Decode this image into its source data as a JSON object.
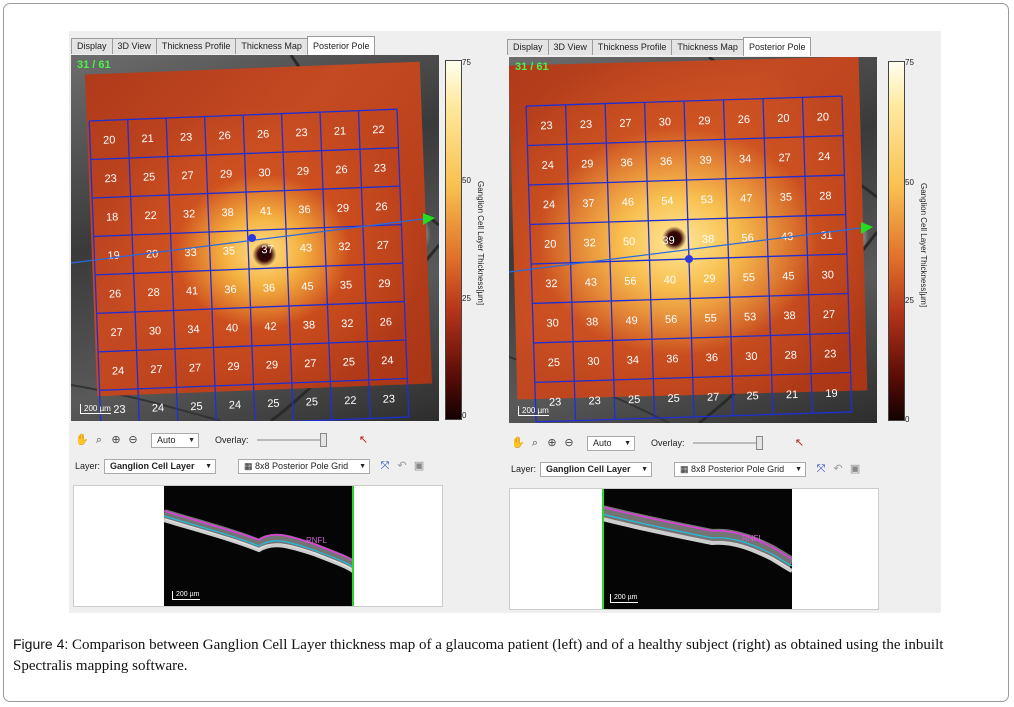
{
  "colors": {
    "grid_line": "#1f2fd4",
    "cell_text": "#ffffff",
    "counter": "#4df04d",
    "accent_arrow": "#22dd22"
  },
  "panels": [
    {
      "tabs": [
        "Display",
        "3D View",
        "Thickness Profile",
        "Thickness Map",
        "Posterior Pole"
      ],
      "active_tab": "Posterior Pole",
      "counter": "31 / 61",
      "scale": "200 µm",
      "colorbar": {
        "ticks": [
          "75",
          "50",
          "25",
          "0"
        ],
        "label": "Ganglion Cell Layer Thickness[µm]"
      },
      "grid": [
        [
          "20",
          "21",
          "23",
          "26",
          "26",
          "23",
          "21",
          "22"
        ],
        [
          "23",
          "25",
          "27",
          "29",
          "30",
          "29",
          "26",
          "23"
        ],
        [
          "18",
          "22",
          "32",
          "38",
          "41",
          "36",
          "29",
          "26"
        ],
        [
          "19",
          "20",
          "33",
          "35",
          "37",
          "43",
          "32",
          "27"
        ],
        [
          "26",
          "28",
          "41",
          "36",
          "36",
          "45",
          "35",
          "29"
        ],
        [
          "27",
          "30",
          "34",
          "40",
          "42",
          "38",
          "32",
          "26"
        ],
        [
          "24",
          "27",
          "27",
          "29",
          "29",
          "27",
          "25",
          "24"
        ],
        [
          "23",
          "24",
          "25",
          "24",
          "25",
          "25",
          "22",
          "23"
        ]
      ],
      "toolbar": {
        "zoom_select": "Auto",
        "overlay_label": "Overlay:",
        "layer_label": "Layer:",
        "layer_select": "Ganglion Cell Layer",
        "grid_select": "8x8 Posterior Pole Grid"
      },
      "bscan": {
        "scale": "200 µm",
        "rnfl_label": "RNFL"
      },
      "icons": [
        "hand-icon",
        "magnify-icon",
        "zoom-in-icon",
        "zoom-out-icon",
        "pointer-icon",
        "grid-icon",
        "fit-icon",
        "undo-icon",
        "save-icon"
      ]
    },
    {
      "tabs": [
        "Display",
        "3D View",
        "Thickness Profile",
        "Thickness Map",
        "Posterior Pole"
      ],
      "active_tab": "Posterior Pole",
      "counter": "31 / 61",
      "scale": "200 µm",
      "colorbar": {
        "ticks": [
          "75",
          "50",
          "25",
          "0"
        ],
        "label": "Ganglion Cell Layer Thickness[µm]"
      },
      "grid": [
        [
          "23",
          "23",
          "27",
          "30",
          "29",
          "26",
          "20",
          "20"
        ],
        [
          "24",
          "29",
          "36",
          "36",
          "39",
          "34",
          "27",
          "24"
        ],
        [
          "24",
          "37",
          "46",
          "54",
          "53",
          "47",
          "35",
          "28"
        ],
        [
          "20",
          "32",
          "50",
          "39",
          "38",
          "56",
          "43",
          "31"
        ],
        [
          "32",
          "43",
          "56",
          "40",
          "29",
          "55",
          "45",
          "30"
        ],
        [
          "30",
          "38",
          "49",
          "56",
          "55",
          "53",
          "38",
          "27"
        ],
        [
          "25",
          "30",
          "34",
          "36",
          "36",
          "30",
          "28",
          "23"
        ],
        [
          "23",
          "23",
          "25",
          "25",
          "27",
          "25",
          "21",
          "19"
        ]
      ],
      "toolbar": {
        "zoom_select": "Auto",
        "overlay_label": "Overlay:",
        "layer_label": "Layer:",
        "layer_select": "Ganglion Cell Layer",
        "grid_select": "8x8 Posterior Pole Grid"
      },
      "bscan": {
        "scale": "200 µm",
        "rnfl_label": "RNFL"
      },
      "icons": [
        "hand-icon",
        "magnify-icon",
        "zoom-in-icon",
        "zoom-out-icon",
        "pointer-icon",
        "grid-icon",
        "fit-icon",
        "undo-icon",
        "save-icon"
      ]
    }
  ],
  "caption": {
    "label": "Figure 4:",
    "text": " Comparison between Ganglion Cell Layer thickness map of a glaucoma patient (left) and of a healthy subject (right) as obtained using the inbuilt Spectralis mapping software."
  }
}
